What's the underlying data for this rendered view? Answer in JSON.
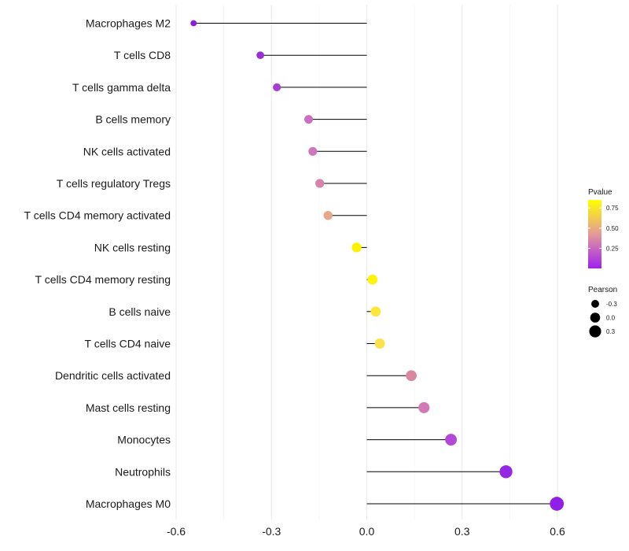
{
  "chart_data": {
    "type": "lollipop",
    "title": "",
    "xlabel": "",
    "ylabel": "",
    "xlim": [
      -0.6,
      0.6
    ],
    "xticks": [
      -0.6,
      -0.3,
      0.0,
      0.3,
      0.6
    ],
    "xtick_labels": [
      "-0.6",
      "-0.3",
      "0.0",
      "0.3",
      "0.6"
    ],
    "grid": "vertical",
    "baseline": 0.0,
    "points": [
      {
        "label": "Macrophages M2",
        "pearson": -0.545,
        "pvalue": 0.02,
        "color": "#8d1ae0"
      },
      {
        "label": "T cells CD8",
        "pearson": -0.335,
        "pvalue": 0.08,
        "color": "#9b2ed8"
      },
      {
        "label": "T cells gamma delta",
        "pearson": -0.283,
        "pvalue": 0.12,
        "color": "#a83dd4"
      },
      {
        "label": "B cells memory",
        "pearson": -0.183,
        "pvalue": 0.32,
        "color": "#cc6fc0"
      },
      {
        "label": "NK cells activated",
        "pearson": -0.17,
        "pvalue": 0.34,
        "color": "#cf77bb"
      },
      {
        "label": "T cells regulatory  Tregs ",
        "pearson": -0.148,
        "pvalue": 0.38,
        "color": "#d584ac"
      },
      {
        "label": "T cells CD4 memory activated",
        "pearson": -0.122,
        "pvalue": 0.58,
        "color": "#e3a98a"
      },
      {
        "label": "NK cells resting",
        "pearson": -0.032,
        "pvalue": 0.92,
        "color": "#fbf200"
      },
      {
        "label": "T cells CD4 memory resting",
        "pearson": 0.018,
        "pvalue": 0.93,
        "color": "#fdf40a"
      },
      {
        "label": "B cells naive",
        "pearson": 0.028,
        "pvalue": 0.88,
        "color": "#fce83a"
      },
      {
        "label": "T cells CD4 naive",
        "pearson": 0.041,
        "pvalue": 0.84,
        "color": "#fbe14a"
      },
      {
        "label": "Dendritic cells activated",
        "pearson": 0.14,
        "pvalue": 0.43,
        "color": "#d9889f"
      },
      {
        "label": "Mast cells resting",
        "pearson": 0.18,
        "pvalue": 0.33,
        "color": "#d27ab6"
      },
      {
        "label": "Monocytes",
        "pearson": 0.265,
        "pvalue": 0.12,
        "color": "#b448d6"
      },
      {
        "label": "Neutrophils",
        "pearson": 0.438,
        "pvalue": 0.03,
        "color": "#9427e4"
      },
      {
        "label": "Macrophages M0",
        "pearson": 0.598,
        "pvalue": 0.01,
        "color": "#8f20ea"
      }
    ],
    "legend_color": {
      "title": "Pvalue",
      "gradient_top": "#ffff00",
      "gradient_mid": "#e49a99",
      "gradient_bottom": "#a020f0",
      "range": [
        0.0,
        0.85
      ],
      "ticks": [
        0.75,
        0.5,
        0.25
      ],
      "tick_labels": [
        "0.75",
        "0.50",
        "0.25"
      ]
    },
    "legend_size": {
      "title": "Pearson",
      "values": [
        -0.3,
        0.0,
        0.3
      ],
      "labels": [
        "-0.3",
        "0.0",
        "0.3"
      ]
    },
    "legend_position": "right"
  }
}
